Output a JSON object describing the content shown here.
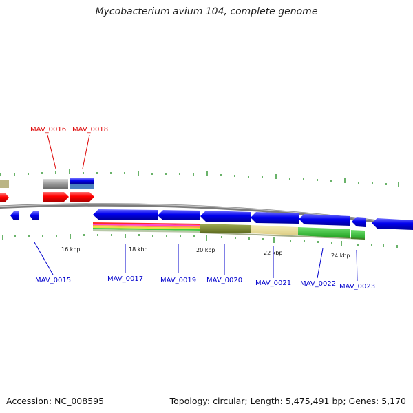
{
  "title": "Mycobacterium avium 104, complete genome",
  "footer": {
    "accession": "Accession: NC_008595",
    "summary": "Topology: circular; Length: 5,475,491 bp; Genes: 5,170"
  },
  "colors": {
    "highlight_label": "#dd0000",
    "gene_label": "#0000cc",
    "cds_forward": "#0000ee",
    "cds_highlight": "#ff0000",
    "backbone": "#808080",
    "tick": "#008000"
  },
  "scale_labels": [
    "16 kbp",
    "18 kbp",
    "20 kbp",
    "22 kbp",
    "24 kbp"
  ],
  "gene_labels": {
    "MAV_0015": "MAV_0015",
    "MAV_0016": "MAV_0016",
    "MAV_0017": "MAV_0017",
    "MAV_0018": "MAV_0018",
    "MAV_0019": "MAV_0019",
    "MAV_0020": "MAV_0020",
    "MAV_0021": "MAV_0021",
    "MAV_0022": "MAV_0022",
    "MAV_0023": "MAV_0023"
  }
}
